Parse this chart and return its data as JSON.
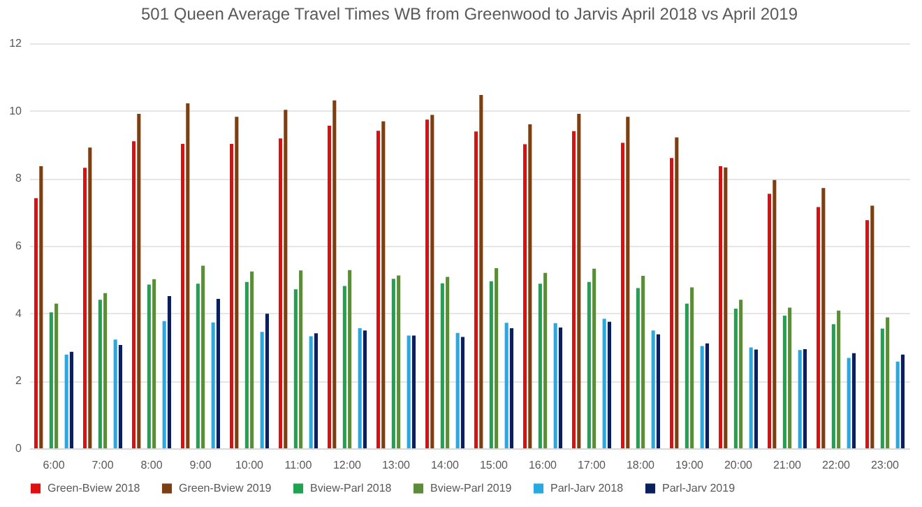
{
  "chart_data": {
    "type": "bar",
    "title": "501 Queen Average Travel Times  WB from Greenwood to Jarvis April 2018 vs April 2019",
    "categories": [
      "6:00",
      "7:00",
      "8:00",
      "9:00",
      "10:00",
      "11:00",
      "12:00",
      "13:00",
      "14:00",
      "15:00",
      "16:00",
      "17:00",
      "18:00",
      "19:00",
      "20:00",
      "21:00",
      "22:00",
      "23:00"
    ],
    "series": [
      {
        "name": "Green-Bview 2018",
        "color": "#e00f0f",
        "values": [
          7.41,
          8.31,
          9.1,
          9.02,
          9.02,
          9.18,
          9.56,
          9.41,
          9.74,
          9.39,
          9.01,
          9.4,
          9.05,
          8.6,
          8.36,
          7.54,
          7.15,
          6.76
        ]
      },
      {
        "name": "Green-Bview 2019",
        "color": "#7b3f14",
        "values": [
          8.36,
          8.91,
          9.91,
          10.22,
          9.82,
          10.03,
          10.31,
          9.69,
          9.88,
          10.47,
          9.6,
          9.91,
          9.82,
          9.21,
          8.32,
          7.95,
          7.71,
          7.19
        ]
      },
      {
        "name": "Bview-Parl 2018",
        "color": "#1fa350",
        "values": [
          4.03,
          4.4,
          4.85,
          4.88,
          4.93,
          4.71,
          4.81,
          5.02,
          4.89,
          4.95,
          4.88,
          4.93,
          4.75,
          4.29,
          4.14,
          3.93,
          3.68,
          3.55
        ]
      },
      {
        "name": "Bview-Parl 2019",
        "color": "#5b8c3a",
        "values": [
          4.29,
          4.6,
          5.01,
          5.41,
          5.24,
          5.27,
          5.28,
          5.12,
          5.08,
          5.34,
          5.2,
          5.32,
          5.11,
          4.77,
          4.4,
          4.17,
          4.08,
          3.88
        ]
      },
      {
        "name": "Parl-Jarv 2018",
        "color": "#27a9e1",
        "values": [
          2.78,
          3.22,
          3.77,
          3.73,
          3.45,
          3.32,
          3.56,
          3.34,
          3.42,
          3.72,
          3.71,
          3.84,
          3.49,
          3.03,
          2.99,
          2.91,
          2.68,
          2.57
        ]
      },
      {
        "name": "Parl-Jarv 2019",
        "color": "#0a1f5c",
        "values": [
          2.86,
          3.06,
          4.51,
          4.43,
          3.99,
          3.41,
          3.49,
          3.34,
          3.3,
          3.56,
          3.58,
          3.75,
          3.38,
          3.11,
          2.93,
          2.94,
          2.82,
          2.78
        ]
      }
    ],
    "ylim": [
      0,
      12
    ],
    "yticks": [
      0,
      2,
      4,
      6,
      8,
      10,
      12
    ],
    "grid": "y",
    "legend": "bottom"
  }
}
